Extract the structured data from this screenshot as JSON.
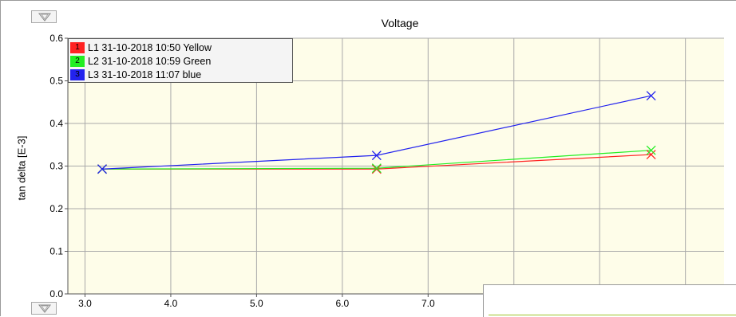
{
  "header": {
    "title": "Voltage"
  },
  "legend_items": [
    {
      "number": "1",
      "label": "L1 31-10-2018 10:50 Yellow",
      "color": "#ff2222"
    },
    {
      "number": "2",
      "label": "L2 31-10-2018 10:59 Green",
      "color": "#22ee22"
    },
    {
      "number": "3",
      "label": "L3 31-10-2018 11:07 blue",
      "color": "#2222ee"
    }
  ],
  "icons": {
    "top_button": "collapse-triangle-icon",
    "bottom_button": "collapse-triangle-icon"
  },
  "colors": {
    "plot_background": "#fefde9",
    "grid": "#a9a9a9",
    "overlay_line": "#9fc22a"
  },
  "chart_data": {
    "type": "line",
    "title": "Voltage",
    "xlabel": "",
    "ylabel": "tan delta [E-3]",
    "xlim": [
      2.8,
      10.45
    ],
    "ylim": [
      0.0,
      0.6
    ],
    "xticks": [
      3.0,
      4.0,
      5.0,
      6.0,
      7.0
    ],
    "xtick_labels": [
      "3.0",
      "4.0",
      "5.0",
      "6.0",
      "7.0"
    ],
    "yticks": [
      0.0,
      0.1,
      0.2,
      0.3,
      0.4,
      0.5,
      0.6
    ],
    "ytick_labels": [
      "0.0",
      "0.1",
      "0.2",
      "0.3",
      "0.4",
      "0.5",
      "0.6"
    ],
    "vertical_gridlines_x": [
      3.0,
      4.0,
      5.0,
      6.0,
      7.0,
      8.0,
      9.0,
      10.0
    ],
    "grid": true,
    "legend_position": "top-left",
    "series": [
      {
        "name": "L1 31-10-2018 10:50 Yellow",
        "color": "#ff2222",
        "x": [
          3.2,
          6.4,
          9.6
        ],
        "y": [
          0.293,
          0.293,
          0.327
        ]
      },
      {
        "name": "L2 31-10-2018 10:59 Green",
        "color": "#22ee22",
        "x": [
          3.2,
          6.4,
          9.6
        ],
        "y": [
          0.293,
          0.295,
          0.337
        ]
      },
      {
        "name": "L3 31-10-2018 11:07 blue",
        "color": "#2222ee",
        "x": [
          3.2,
          6.4,
          9.6
        ],
        "y": [
          0.293,
          0.325,
          0.465
        ]
      }
    ]
  }
}
